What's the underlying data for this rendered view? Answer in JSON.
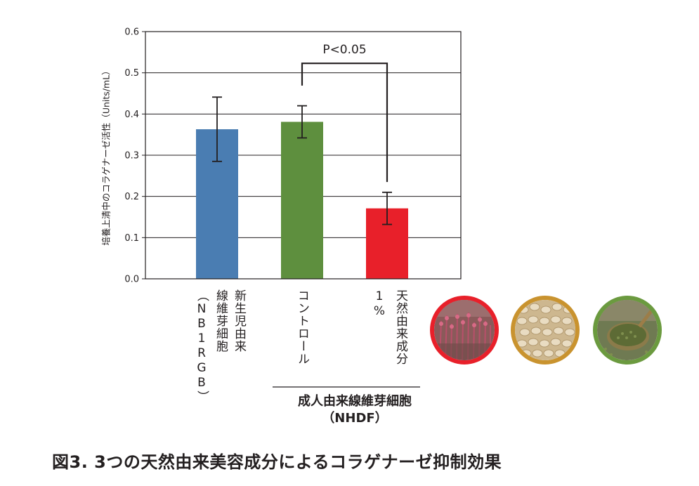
{
  "chart_data": {
    "type": "bar",
    "ylabel": "培養上清中のコラゲナーゼ活性（Units/mL）",
    "ylim": [
      0,
      0.6
    ],
    "yticks": [
      "0.0",
      "0.1",
      "0.2",
      "0.3",
      "0.4",
      "0.5",
      "0.6"
    ],
    "categories": [
      "新生児由来線維芽細胞（NB1RGB）",
      "コントロール",
      "天然由来成分 1%"
    ],
    "values": [
      0.363,
      0.381,
      0.171
    ],
    "error": [
      0.078,
      0.039,
      0.039
    ],
    "colors": [
      "#4a7db2",
      "#5e8f3e",
      "#e8202a"
    ],
    "grid": true,
    "significance": {
      "label": "P<0.05",
      "between": [
        "コントロール",
        "天然由来成分 1%"
      ]
    },
    "group_label": "成人由来線維芽細胞\n（NHDF）"
  },
  "labels": {
    "cat1_col1": "新生児由来",
    "cat1_col2": "線維芽細胞",
    "cat1_col3": "（NB1RGB）",
    "cat2_col1": "コントロール",
    "cat3_col1": "天然由来成分",
    "cat3_col2": "1%",
    "group_line1": "成人由来線維芽細胞",
    "group_line2": "（NHDF）"
  },
  "caption": "図3. 3つの天然由来美容成分によるコラゲナーゼ抑制効果",
  "photos": [
    {
      "name": "red-plant-photo",
      "border": "#e8202a"
    },
    {
      "name": "seed-photo",
      "border": "#c9932f"
    },
    {
      "name": "herb-powder-photo",
      "border": "#6b9a3f"
    }
  ]
}
